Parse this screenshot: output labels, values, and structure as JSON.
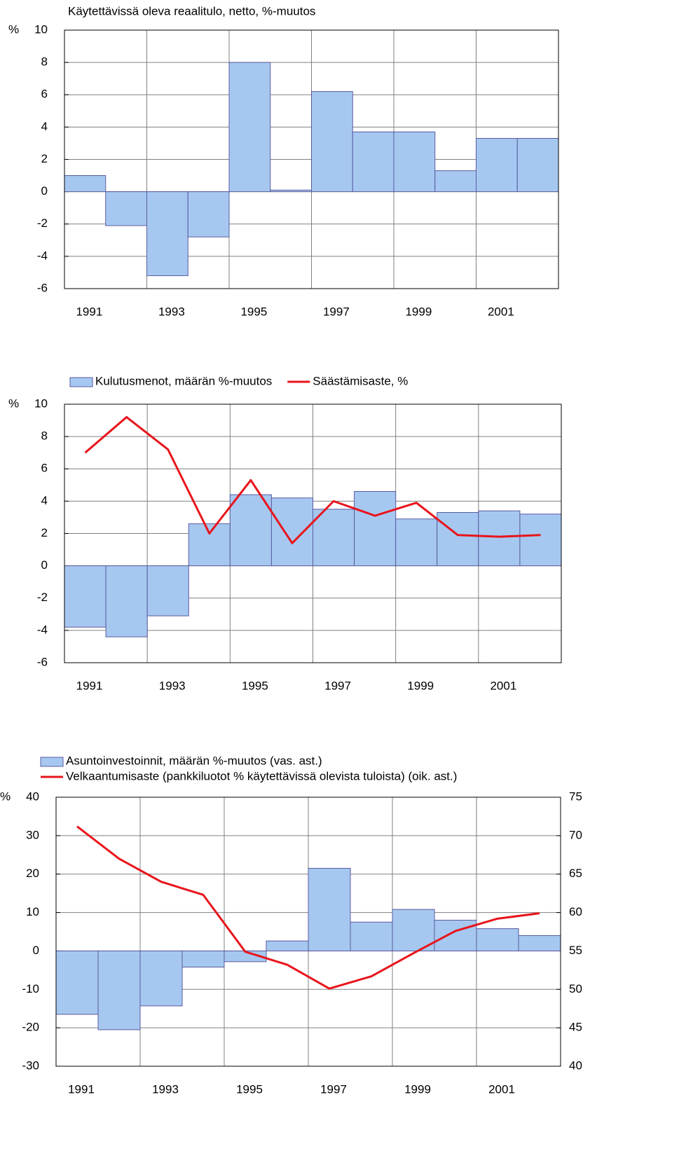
{
  "chart_data": [
    {
      "type": "bar",
      "title": "Käytettävissä oleva reaalitulo, netto, %-muutos",
      "y_unit": "%",
      "categories": [
        "1991",
        null,
        "1993",
        null,
        "1995",
        null,
        "1997",
        null,
        "1999",
        null,
        "2001",
        null
      ],
      "values": [
        1.0,
        -2.1,
        -5.2,
        -2.8,
        8.0,
        0.1,
        6.2,
        3.7,
        3.7,
        1.3,
        3.3,
        3.3
      ],
      "color": "#a6c8f0",
      "ylim": [
        -6,
        10
      ],
      "yticks": [
        -6,
        -4,
        -2,
        0,
        2,
        4,
        6,
        8,
        10
      ],
      "grid": true
    },
    {
      "type": "bar_line",
      "y_unit": "%",
      "categories": [
        "1991",
        null,
        "1993",
        null,
        "1995",
        null,
        "1997",
        null,
        "1999",
        null,
        "2001",
        null
      ],
      "series": [
        {
          "name": "Kulutusmenot, määrän %-muutos",
          "type": "bar",
          "color": "#a6c8f0",
          "values": [
            -3.8,
            -4.4,
            -3.1,
            2.6,
            4.4,
            4.2,
            3.5,
            4.6,
            2.9,
            3.3,
            3.4,
            3.2
          ]
        },
        {
          "name": "Säästämisaste, %",
          "type": "line",
          "color": "#e8141c",
          "values": [
            7.0,
            9.2,
            7.2,
            2.0,
            5.3,
            1.4,
            4.0,
            3.1,
            3.9,
            1.9,
            1.8,
            1.9
          ]
        }
      ],
      "ylim": [
        -6,
        10
      ],
      "yticks": [
        -6,
        -4,
        -2,
        0,
        2,
        4,
        6,
        8,
        10
      ],
      "grid": true
    },
    {
      "type": "bar_line",
      "y_unit": "%",
      "categories": [
        "1991",
        null,
        "1993",
        null,
        "1995",
        null,
        "1997",
        null,
        "1999",
        null,
        "2001",
        null
      ],
      "series": [
        {
          "name": "Asuntoinvestoinnit, määrän %-muutos (vas. ast.)",
          "type": "bar",
          "color": "#a6c8f0",
          "values": [
            -16.5,
            -20.5,
            -14.3,
            -4.2,
            -2.8,
            2.6,
            21.5,
            7.5,
            10.8,
            8.0,
            5.8,
            4.0
          ]
        },
        {
          "name": "Velkaantumisaste (pankkiluotot % käytettävissä olevista tuloista) (oik. ast.)",
          "type": "line",
          "color": "#e8141c",
          "axis": "y2",
          "values": [
            71.2,
            67.0,
            64.0,
            62.3,
            54.9,
            53.2,
            50.1,
            51.7,
            54.7,
            57.6,
            59.2,
            59.9
          ]
        }
      ],
      "ylim": [
        -30,
        40
      ],
      "yticks": [
        -30,
        -20,
        -10,
        0,
        10,
        20,
        30,
        40
      ],
      "y2lim": [
        40,
        75
      ],
      "y2ticks": [
        40,
        45,
        50,
        55,
        60,
        65,
        70,
        75
      ],
      "grid": true
    }
  ]
}
